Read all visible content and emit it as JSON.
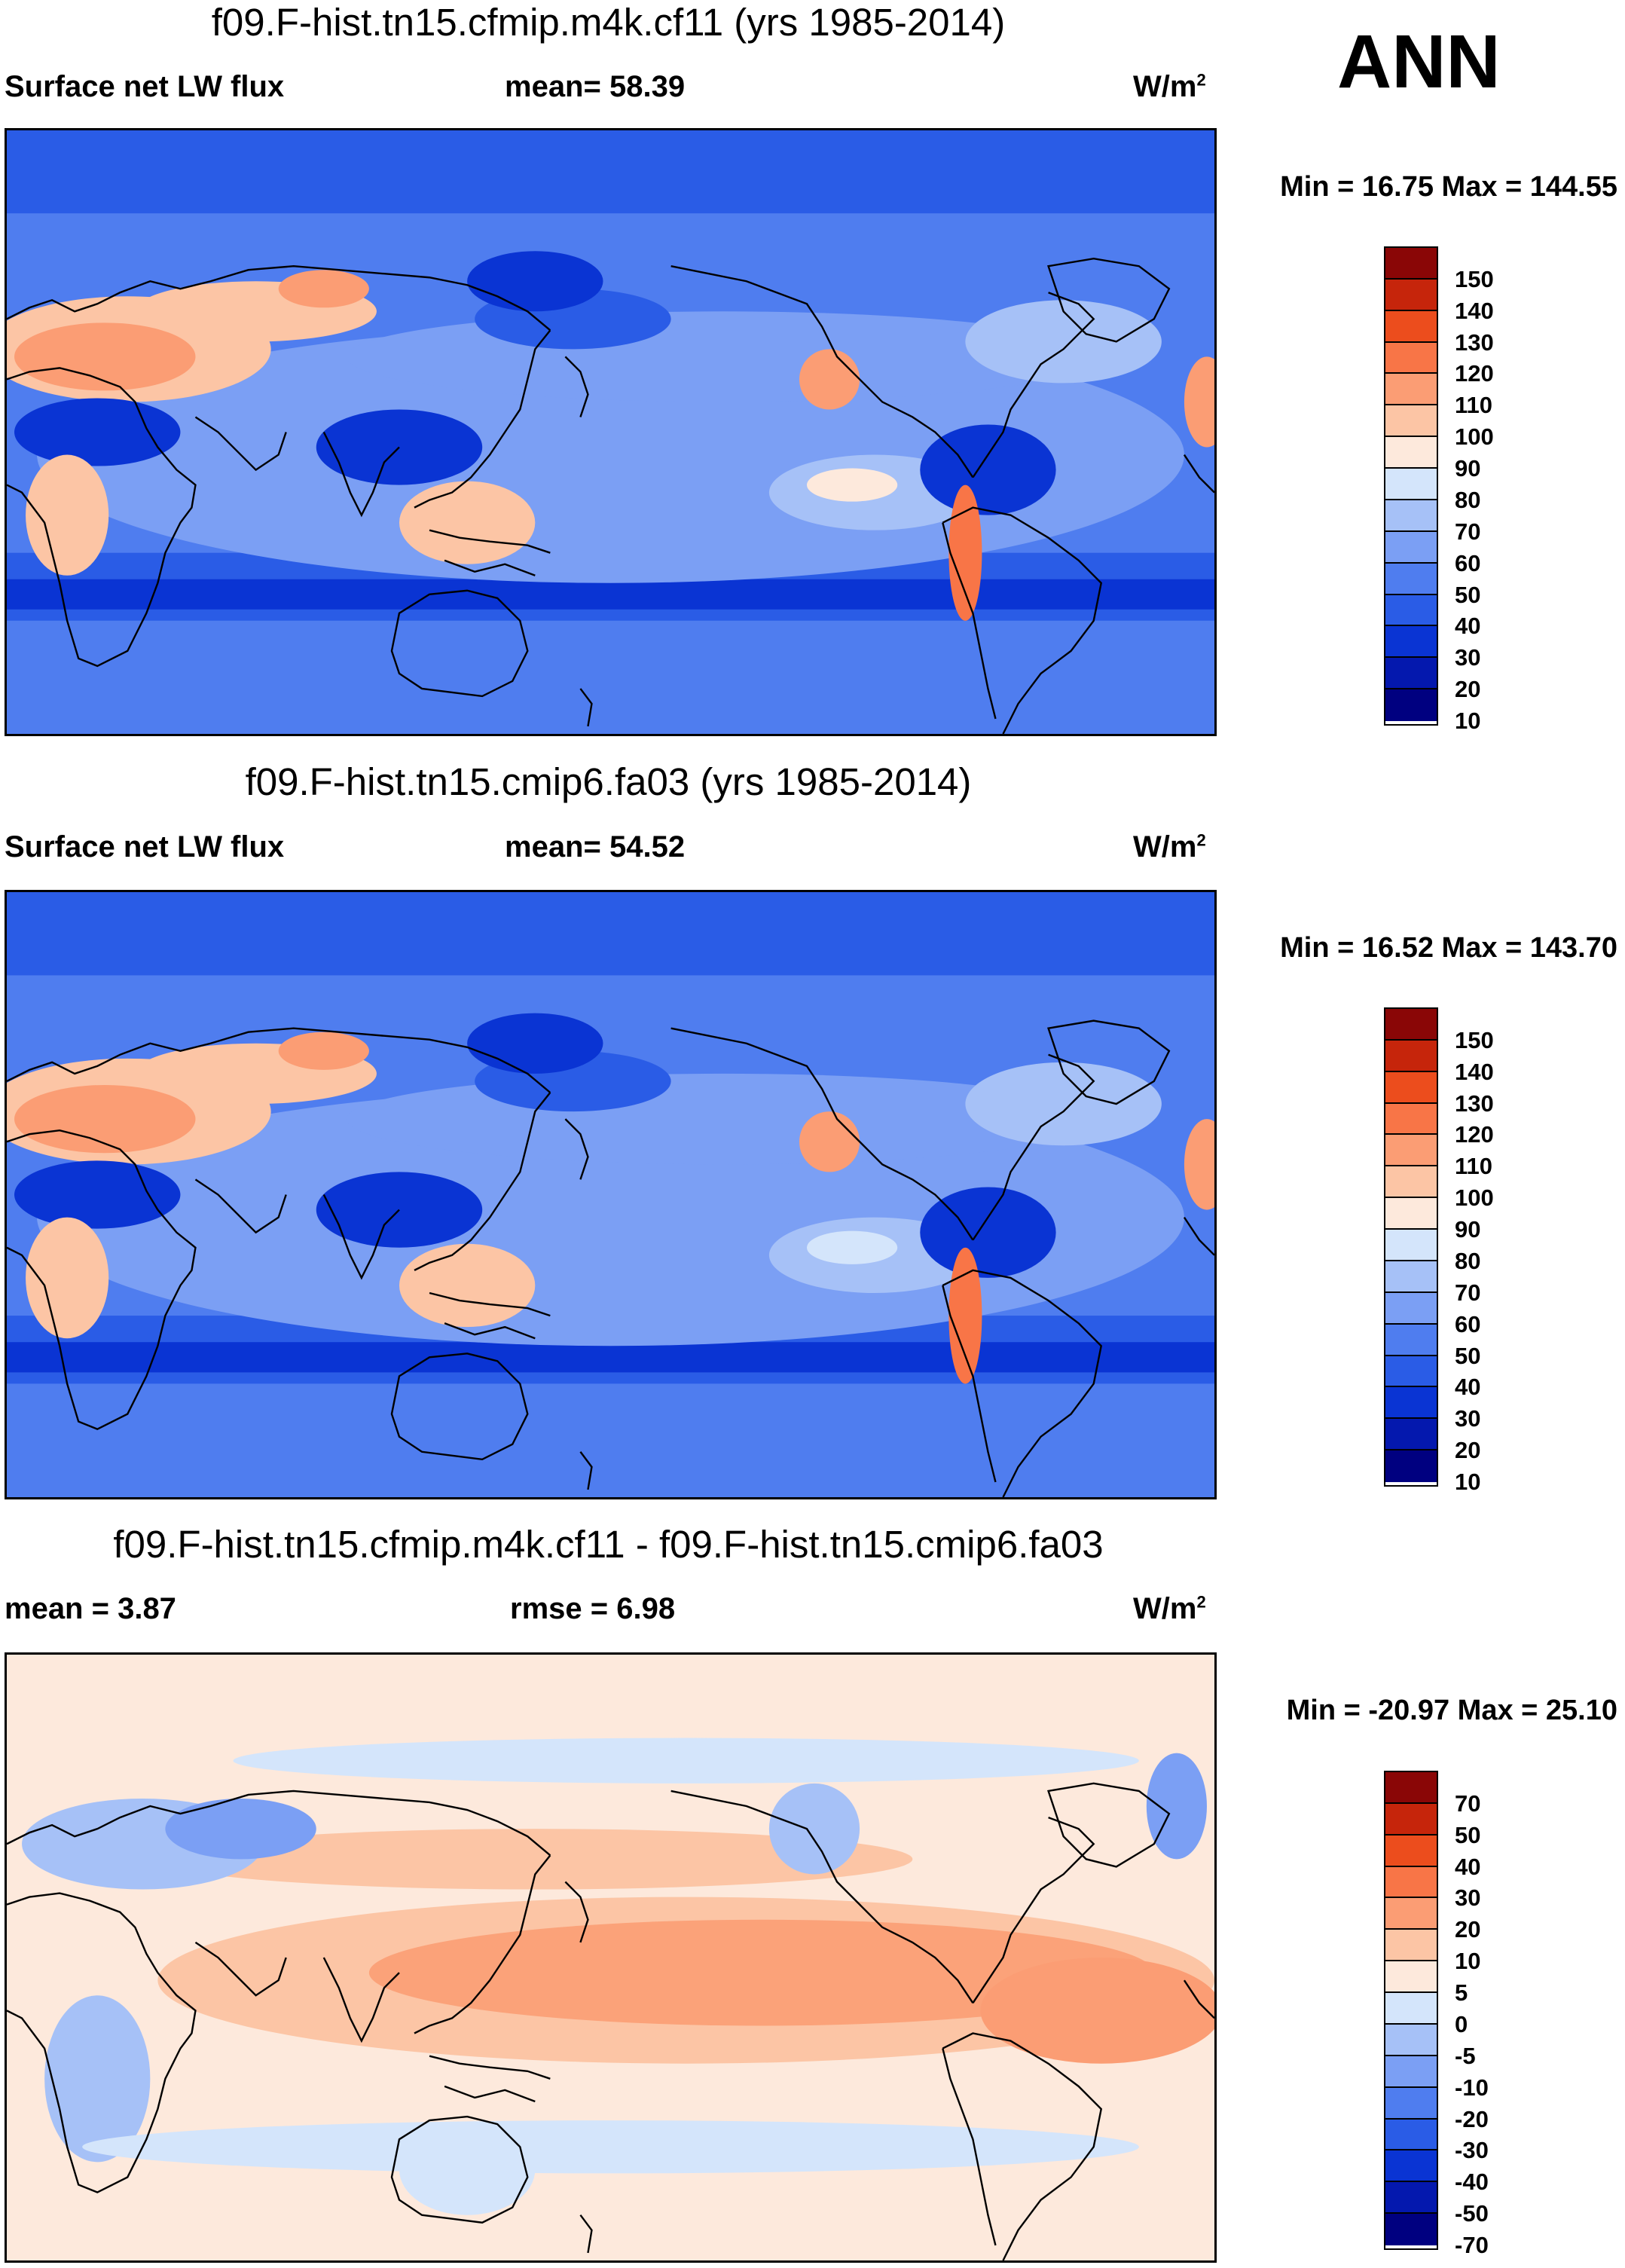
{
  "season": "ANN",
  "colors": {
    "seq": [
      "#000080",
      "#0418ae",
      "#0a34d3",
      "#2a5ce6",
      "#4f7def",
      "#7b9ff4",
      "#a6c1f7",
      "#d4e5fb",
      "#fde9dc",
      "#fcc5a5",
      "#fb9d74",
      "#f87547",
      "#ec4d1d",
      "#c6250b",
      "#8a0606"
    ],
    "diff": [
      "#000080",
      "#0418ae",
      "#0a34d3",
      "#2a5ce6",
      "#4f7def",
      "#7b9ff4",
      "#a6c1f7",
      "#d4e5fb",
      "#fde9dc",
      "#fcc5a5",
      "#fb9d74",
      "#f87547",
      "#ec4d1d",
      "#c6250b",
      "#8a0606"
    ],
    "coastline": "#000000"
  },
  "panels": [
    {
      "title": "f09.F-hist.tn15.cfmip.m4k.cf11 (yrs 1985-2014)",
      "left_label": "Surface net LW flux",
      "center_label": "mean=  58.39",
      "units": "W/m",
      "units_sup": "2",
      "minmax": "Min =  16.75 Max = 144.55",
      "colorbar": {
        "labels": [
          "150",
          "140",
          "130",
          "120",
          "110",
          "100",
          "90",
          "80",
          "70",
          "60",
          "50",
          "40",
          "30",
          "20",
          "10"
        ]
      }
    },
    {
      "title": "f09.F-hist.tn15.cmip6.fa03 (yrs 1985-2014)",
      "left_label": "Surface net LW flux",
      "center_label": "mean=  54.52",
      "units": "W/m",
      "units_sup": "2",
      "minmax": "Min =  16.52 Max = 143.70",
      "colorbar": {
        "labels": [
          "150",
          "140",
          "130",
          "120",
          "110",
          "100",
          "90",
          "80",
          "70",
          "60",
          "50",
          "40",
          "30",
          "20",
          "10"
        ]
      }
    },
    {
      "title": "f09.F-hist.tn15.cfmip.m4k.cf11 - f09.F-hist.tn15.cmip6.fa03",
      "left_label": "mean =   3.87",
      "center_label": "rmse =    6.98",
      "units": "W/m",
      "units_sup": "2",
      "minmax": "Min = -20.97 Max =  25.10",
      "colorbar": {
        "labels": [
          "70",
          "50",
          "40",
          "30",
          "20",
          "10",
          "5",
          "0",
          "-5",
          "-10",
          "-20",
          "-30",
          "-40",
          "-50",
          "-70"
        ]
      }
    }
  ]
}
